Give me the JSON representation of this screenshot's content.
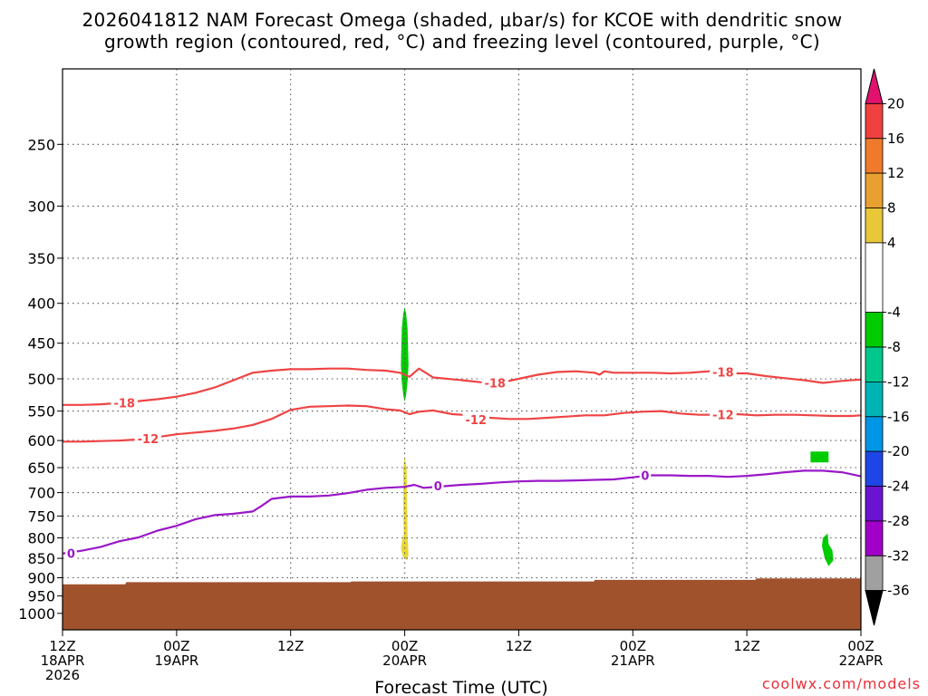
{
  "chart_data": {
    "type": "time-height cross section",
    "title_line1": "2026041812 NAM Forecast Omega (shaded, μbar/s) for KCOE with dendritic snow",
    "title_line2": "growth region (contoured, red, °C) and freezing level (contoured, purple, °C)",
    "xlabel": "Forecast Time (UTC)",
    "ylabel": "",
    "y_axis": {
      "log_scale": true,
      "reversed": true,
      "ylim": [
        1050,
        200
      ],
      "ticks": [
        250,
        300,
        350,
        400,
        450,
        500,
        550,
        600,
        650,
        700,
        750,
        800,
        850,
        900,
        950,
        1000
      ]
    },
    "x_axis": {
      "xlim": [
        0,
        84
      ],
      "ticks": [
        {
          "hour": 0,
          "line1": "12Z",
          "line2": "18APR",
          "line3": "2026"
        },
        {
          "hour": 12,
          "line1": "00Z",
          "line2": "19APR",
          "line3": ""
        },
        {
          "hour": 24,
          "line1": "12Z",
          "line2": "",
          "line3": ""
        },
        {
          "hour": 36,
          "line1": "00Z",
          "line2": "20APR",
          "line3": ""
        },
        {
          "hour": 48,
          "line1": "12Z",
          "line2": "",
          "line3": ""
        },
        {
          "hour": 60,
          "line1": "00Z",
          "line2": "21APR",
          "line3": ""
        },
        {
          "hour": 72,
          "line1": "12Z",
          "line2": "",
          "line3": ""
        },
        {
          "hour": 84,
          "line1": "00Z",
          "line2": "22APR",
          "line3": ""
        }
      ]
    },
    "grid": true,
    "colorbar": {
      "unit": "μbar/s",
      "labels": [
        "20",
        "16",
        "12",
        "8",
        "4",
        "-4",
        "-8",
        "-12",
        "-16",
        "-20",
        "-24",
        "-28",
        "-32",
        "-36"
      ],
      "bins": [
        {
          "from": 20,
          "to": 24,
          "color": "#e0126e"
        },
        {
          "from": 16,
          "to": 20,
          "color": "#f04040"
        },
        {
          "from": 12,
          "to": 16,
          "color": "#f07a2c"
        },
        {
          "from": 8,
          "to": 12,
          "color": "#e8a030"
        },
        {
          "from": 4,
          "to": 8,
          "color": "#e8c838"
        },
        {
          "from": -4,
          "to": 4,
          "color": "#ffffff"
        },
        {
          "from": -8,
          "to": -4,
          "color": "#00cc00"
        },
        {
          "from": -12,
          "to": -8,
          "color": "#00c88c"
        },
        {
          "from": -16,
          "to": -12,
          "color": "#00b4b4"
        },
        {
          "from": -20,
          "to": -16,
          "color": "#0096e6"
        },
        {
          "from": -24,
          "to": -20,
          "color": "#1e46e6"
        },
        {
          "from": -28,
          "to": -24,
          "color": "#6a14d2"
        },
        {
          "from": -32,
          "to": -28,
          "color": "#a000c8"
        },
        {
          "from": -36,
          "to": -32,
          "color": "#a0a0a0"
        },
        {
          "from": -40,
          "to": -36,
          "color": "#000000"
        }
      ]
    },
    "series": [
      {
        "name": "",
        "level": "-18",
        "color": "#ee4444",
        "x": [
          0,
          2,
          4,
          6,
          8,
          10,
          12,
          14,
          16,
          18,
          20,
          22,
          24,
          26,
          28,
          30,
          32,
          34,
          35.5,
          36.5,
          37.5,
          39,
          42,
          44,
          46,
          48,
          50,
          52,
          54,
          56,
          56.5,
          57,
          58,
          60,
          62,
          64,
          66,
          68,
          70,
          72,
          74,
          76,
          78,
          80,
          82,
          84
        ],
        "y": [
          540,
          540,
          539,
          537,
          534,
          531,
          527,
          521,
          513,
          502,
          491,
          488,
          486,
          486,
          485,
          485,
          487,
          488,
          491,
          497,
          485,
          498,
          502,
          505,
          506,
          500,
          494,
          490,
          489,
          491,
          494,
          489,
          491,
          491,
          491,
          492,
          491,
          489,
          492,
          492,
          496,
          499,
          502,
          506,
          503,
          501
        ],
        "labels": [
          {
            "x": 6.5,
            "y": 537,
            "text": "-18"
          },
          {
            "x": 45.5,
            "y": 506,
            "text": "-18"
          },
          {
            "x": 69.5,
            "y": 490,
            "text": "-18"
          }
        ]
      },
      {
        "name": "",
        "level": "-12",
        "color": "#ee4444",
        "x": [
          0,
          2,
          4,
          6,
          8,
          10,
          12,
          14,
          16,
          18,
          20,
          22,
          24,
          26,
          28,
          30,
          32,
          34,
          35.5,
          36.5,
          37.5,
          39,
          41,
          43,
          45,
          47,
          49,
          51,
          53,
          55,
          57,
          59,
          61,
          63,
          65,
          67,
          69,
          71,
          73,
          75,
          77,
          79,
          81,
          83,
          84
        ],
        "y": [
          602,
          602,
          601,
          600,
          598,
          594,
          589,
          586,
          583,
          579,
          573,
          563,
          548,
          543,
          542,
          541,
          542,
          547,
          549,
          555,
          551,
          549,
          555,
          557,
          561,
          563,
          563,
          561,
          559,
          557,
          557,
          553,
          551,
          550,
          554,
          556,
          556,
          555,
          557,
          556,
          556,
          557,
          558,
          558,
          557
        ],
        "labels": [
          {
            "x": 9,
            "y": 597,
            "text": "-12"
          },
          {
            "x": 43.5,
            "y": 564,
            "text": "-12"
          },
          {
            "x": 69.5,
            "y": 556,
            "text": "-12"
          }
        ]
      },
      {
        "name": "",
        "level": "0",
        "color": "#9a18c8",
        "x": [
          0,
          2,
          4,
          6,
          8,
          10,
          12,
          14,
          16,
          18,
          20,
          21,
          22,
          24,
          26,
          28,
          30,
          32,
          34,
          36,
          37,
          38,
          40,
          42,
          44,
          46,
          48,
          50,
          52,
          54,
          56,
          58,
          60,
          62,
          64,
          66,
          68,
          70,
          72,
          74,
          76,
          78,
          80,
          82,
          84
        ],
        "y": [
          838,
          831,
          822,
          808,
          799,
          783,
          772,
          757,
          748,
          745,
          740,
          727,
          713,
          708,
          708,
          706,
          701,
          694,
          690,
          688,
          684,
          690,
          687,
          684,
          682,
          679,
          677,
          676,
          676,
          675,
          674,
          673,
          669,
          665,
          665,
          666,
          666,
          668,
          666,
          663,
          659,
          656,
          656,
          659,
          667
        ],
        "labels": [
          {
            "x": 0.9,
            "y": 837,
            "text": "0"
          },
          {
            "x": 39.5,
            "y": 686,
            "text": "0"
          },
          {
            "x": 61.3,
            "y": 665,
            "text": "0"
          }
        ]
      }
    ],
    "shaded_regions": [
      {
        "value": -6,
        "color": "#00cc00",
        "outline": [
          [
            35.6,
            480
          ],
          [
            35.7,
            430
          ],
          [
            35.85,
            412
          ],
          [
            36.0,
            405
          ],
          [
            36.15,
            412
          ],
          [
            36.3,
            430
          ],
          [
            36.4,
            480
          ],
          [
            36.3,
            505
          ],
          [
            36.15,
            525
          ],
          [
            36.0,
            535
          ],
          [
            35.85,
            525
          ],
          [
            35.7,
            505
          ]
        ]
      },
      {
        "value": -6,
        "color": "#00cc00",
        "outline": [
          [
            78.7,
            620
          ],
          [
            80.6,
            620
          ],
          [
            80.6,
            640
          ],
          [
            78.7,
            640
          ]
        ]
      },
      {
        "value": -6,
        "color": "#00cc00",
        "outline": [
          [
            80.0,
            800
          ],
          [
            80.5,
            790
          ],
          [
            80.6,
            815
          ],
          [
            81.0,
            830
          ],
          [
            81.1,
            855
          ],
          [
            80.6,
            870
          ],
          [
            80.2,
            850
          ],
          [
            79.9,
            820
          ]
        ]
      },
      {
        "value": 6,
        "color": "#e8d838",
        "outline": [
          [
            36.0,
            630
          ],
          [
            36.2,
            650
          ],
          [
            36.25,
            720
          ],
          [
            36.3,
            790
          ],
          [
            36.35,
            815
          ],
          [
            36.4,
            840
          ],
          [
            36.2,
            855
          ],
          [
            35.8,
            845
          ],
          [
            35.6,
            825
          ],
          [
            35.75,
            805
          ],
          [
            35.9,
            790
          ],
          [
            35.85,
            720
          ],
          [
            35.85,
            650
          ]
        ]
      }
    ],
    "terrain": {
      "color": "#a0522d",
      "surface_x": [
        0,
        6.6,
        6.7,
        30.3,
        30.4,
        55.9,
        56.0,
        72.9,
        73.0,
        84
      ],
      "surface_p": [
        918,
        918,
        912,
        912,
        910,
        910,
        906,
        906,
        902,
        902
      ]
    },
    "credit": "coolwx.com/models"
  }
}
